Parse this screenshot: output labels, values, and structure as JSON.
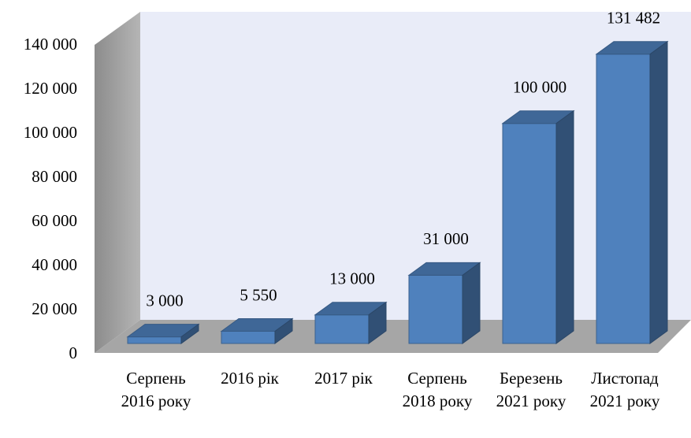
{
  "chart_data": {
    "type": "bar3d",
    "categories": [
      "Серпень 2016 року",
      "2016 рік",
      "2017 рік",
      "Серпень 2018 року",
      "Березень 2021 року",
      "Листопад 2021 року"
    ],
    "values": [
      3000,
      5550,
      13000,
      31000,
      100000,
      131482
    ],
    "value_labels": [
      "3 000",
      "5 550",
      "13 000",
      "31 000",
      "100 000",
      "131 482"
    ],
    "color": "#4f81bd",
    "ylim": [
      0,
      140000
    ],
    "yticks": [
      0,
      {
        "value": 20000,
        "label": "20 000"
      },
      {
        "value": 40000,
        "label": "40 000"
      },
      {
        "value": 60000,
        "label": "60 000"
      },
      {
        "value": 80000,
        "label": "80 000"
      },
      {
        "value": 100000,
        "label": "100 000"
      },
      {
        "value": 120000,
        "label": "120 000"
      },
      {
        "value": 140000,
        "label": "140 000"
      }
    ],
    "grid": false
  }
}
